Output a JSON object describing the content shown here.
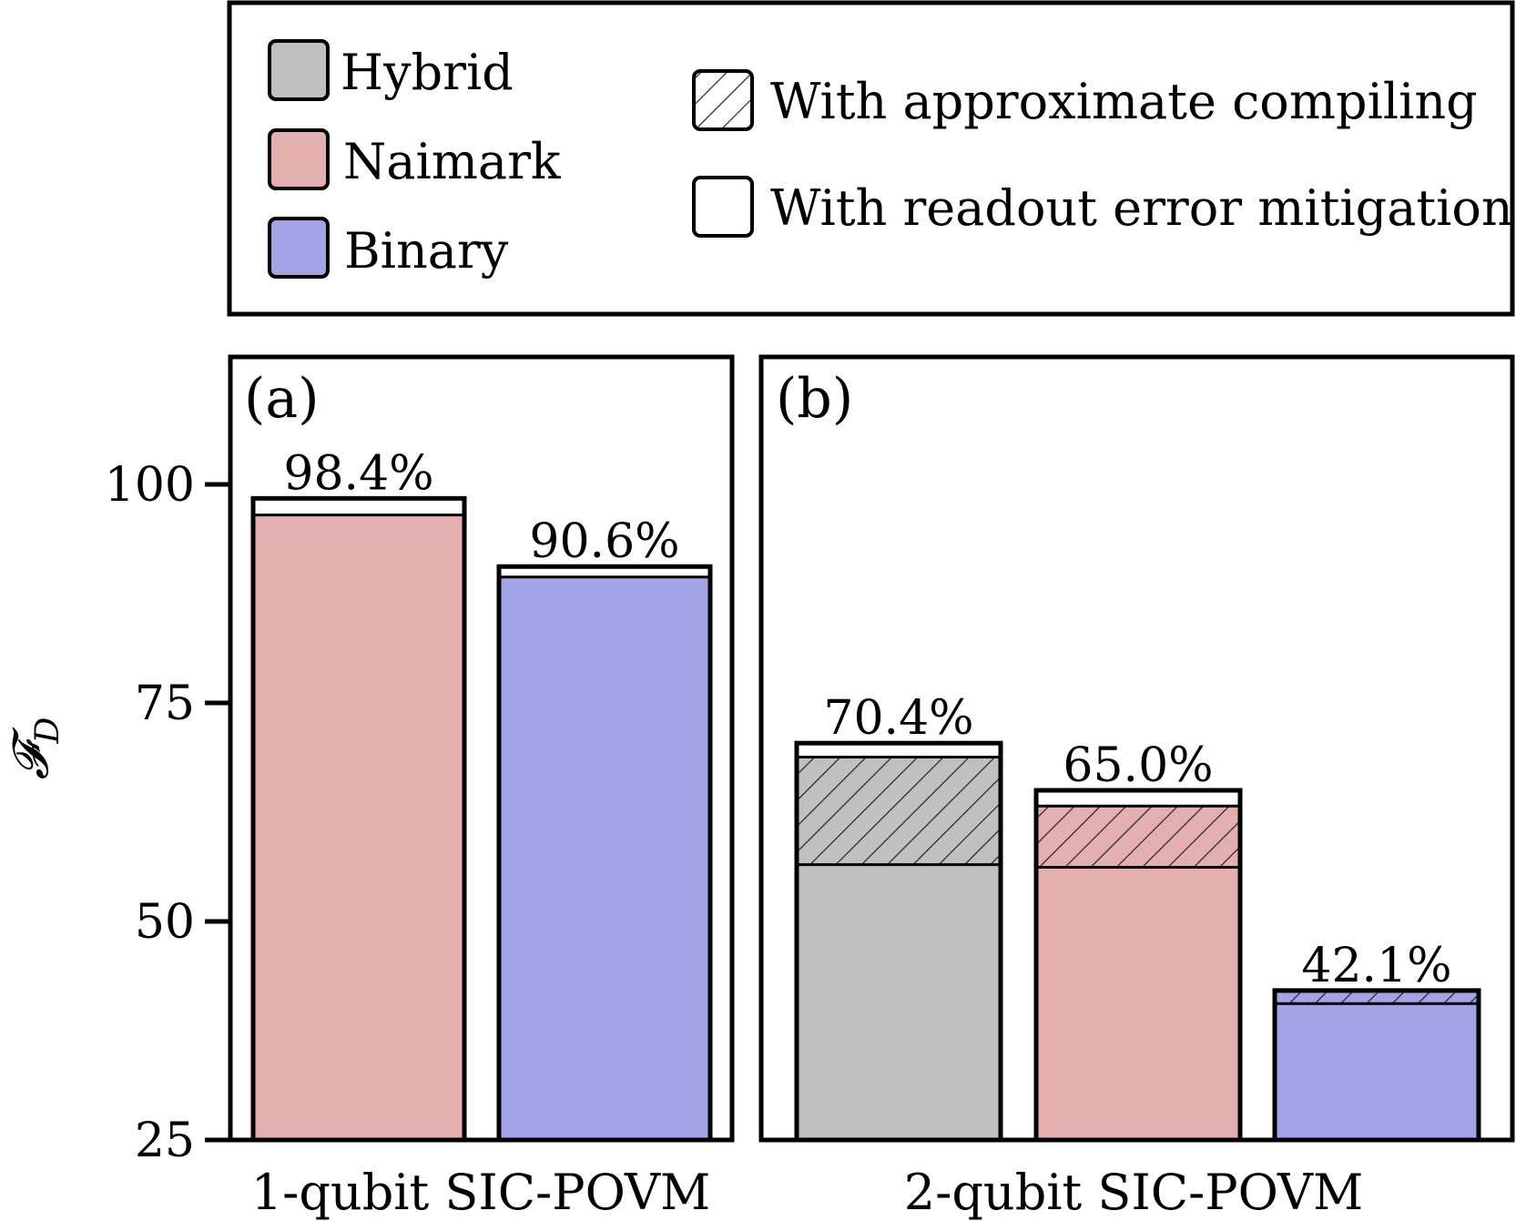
{
  "legend": {
    "methods": [
      {
        "label": "Hybrid",
        "color": "#c0c0c0"
      },
      {
        "label": "Naimark",
        "color": "#e3afaf"
      },
      {
        "label": "Binary",
        "color": "#a3a3e6"
      }
    ],
    "techniques": [
      {
        "label": "With approximate compiling",
        "style": "hatched"
      },
      {
        "label": "With readout error mitigation",
        "style": "white"
      }
    ]
  },
  "y_axis": {
    "label": "F_D",
    "ticks": [
      25,
      50,
      75,
      100
    ],
    "range": [
      25,
      113
    ]
  },
  "chart_data": [
    {
      "type": "bar",
      "panel_label": "(a)",
      "xlabel": "1-qubit SIC-POVM",
      "ylim": [
        25,
        113
      ],
      "bars": [
        {
          "method": "Naimark",
          "base": 96.5,
          "approx_compiling": null,
          "total": 98.4,
          "value_label": "98.4%"
        },
        {
          "method": "Binary",
          "base": 89.4,
          "approx_compiling": null,
          "total": 90.6,
          "value_label": "90.6%"
        }
      ]
    },
    {
      "type": "bar",
      "panel_label": "(b)",
      "xlabel": "2-qubit SIC-POVM",
      "ylim": [
        25,
        113
      ],
      "bars": [
        {
          "method": "Hybrid",
          "base": 56.5,
          "approx_compiling": 68.8,
          "total": 70.4,
          "value_label": "70.4%"
        },
        {
          "method": "Naimark",
          "base": 56.2,
          "approx_compiling": 63.2,
          "total": 65.0,
          "value_label": "65.0%"
        },
        {
          "method": "Binary",
          "base": 40.6,
          "approx_compiling": 42.0,
          "total": 42.1,
          "value_label": "42.1%"
        }
      ]
    }
  ]
}
